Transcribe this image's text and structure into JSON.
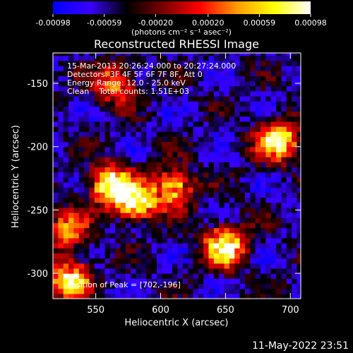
{
  "colorbar": {
    "tick_labels": [
      "-0.00098",
      "-0.00059",
      "-0.00020",
      "0.00020",
      "0.00059",
      "0.00098"
    ],
    "tick_values": [
      -0.00098,
      -0.00059,
      -0.0002,
      0.0002,
      0.00059,
      0.00098
    ],
    "range": [
      -0.00098,
      0.00098
    ],
    "units_label": "(photons cm⁻² s⁻¹ asec⁻²)",
    "stops": [
      "#0000ff",
      "#3a00ff",
      "#000000",
      "#7a0000",
      "#ff0000",
      "#ff9a00",
      "#ffff00",
      "#ffffff"
    ]
  },
  "chart_data": {
    "type": "heatmap",
    "title": "Reconstructed RHESSI Image",
    "xlabel": "Heliocentric X (arcsec)",
    "ylabel": "Heliocentric Y (arcsec)",
    "xlim": [
      517,
      708
    ],
    "ylim": [
      -320,
      -126
    ],
    "xticks": [
      550,
      600,
      650,
      700
    ],
    "yticks": [
      -150,
      -200,
      -250,
      -300
    ],
    "hot_regions": [
      {
        "x": 580,
        "y": -243,
        "value": 0.00098
      },
      {
        "x": 560,
        "y": -230,
        "value": 0.0008
      },
      {
        "x": 610,
        "y": -232,
        "value": 0.0007
      },
      {
        "x": 650,
        "y": -278,
        "value": 0.0009
      },
      {
        "x": 690,
        "y": -195,
        "value": 0.0009
      },
      {
        "x": 530,
        "y": -305,
        "value": 0.0008
      },
      {
        "x": 527,
        "y": -265,
        "value": 0.0005
      },
      {
        "x": 565,
        "y": -150,
        "value": 0.0004
      }
    ],
    "peak": {
      "x": 702,
      "y": -196
    }
  },
  "annotations": {
    "time_range": "15-Mar-2013 20:26:24.000 to 20:27:24.000",
    "detectors": "Detectors: 3F 4F 5F 6F 7F 8F, Att 0",
    "energy": "Energy Range: 12.0 - 25.0 keV",
    "clean": "Clean    Total counts: 1.51E+03",
    "peak_label": "Position of Peak = [702,-196]"
  },
  "footer": {
    "date": "11-May-2022 23:51"
  }
}
